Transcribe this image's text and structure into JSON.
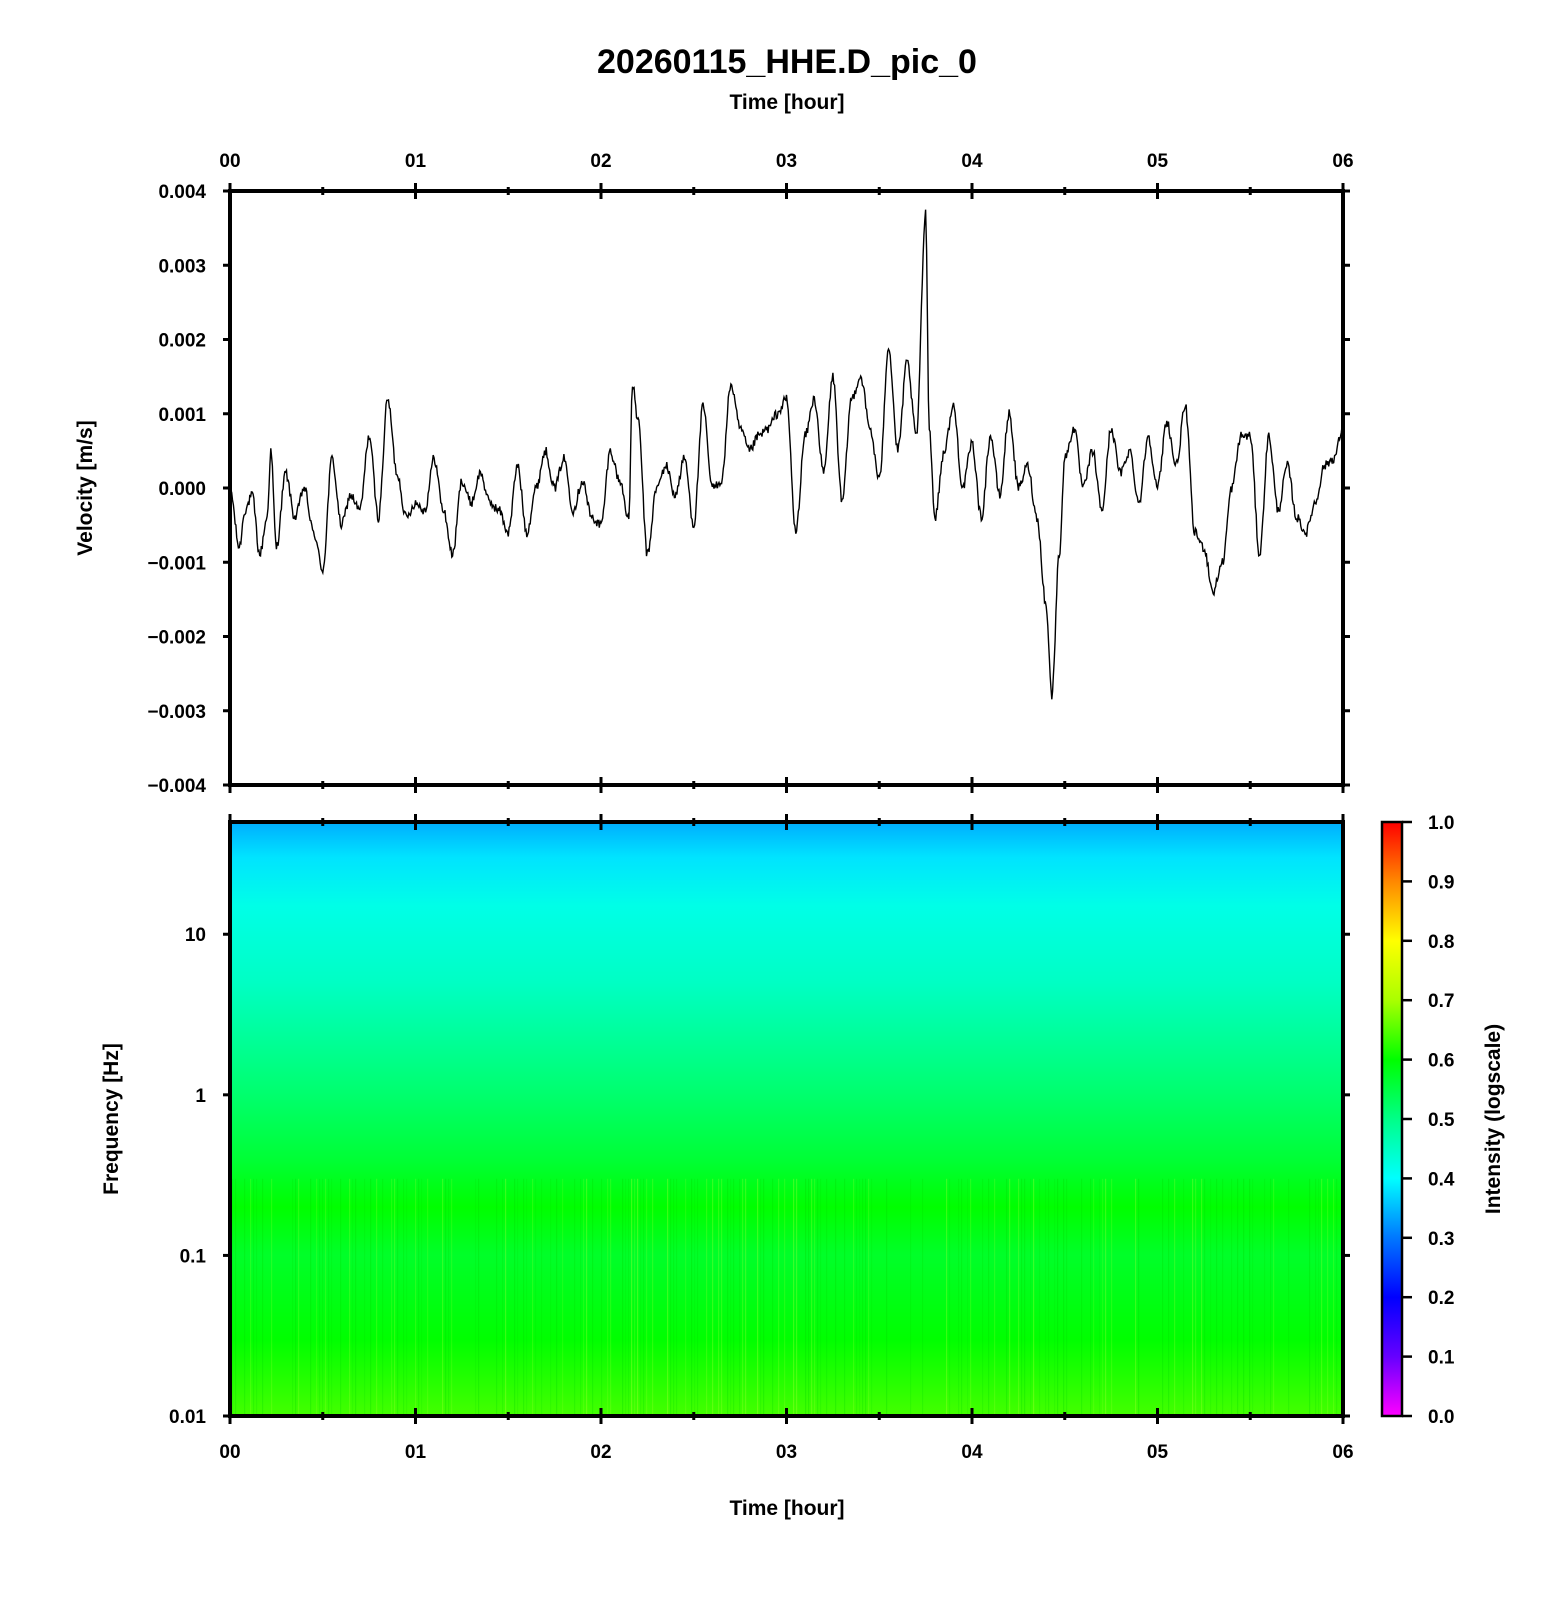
{
  "title": "20260115_HHE.D_pic_0",
  "top_xlabel": "Time [hour]",
  "bottom_xlabel": "Time [hour]",
  "colors": {
    "trace": "#000000",
    "frame": "#000000",
    "background": "#ffffff"
  },
  "chart_data": [
    {
      "type": "line",
      "ylabel": "Velocity [m/s]",
      "xlim": [
        0,
        6
      ],
      "ylim": [
        -0.004,
        0.004
      ],
      "x_tick_labels": [
        "00",
        "01",
        "02",
        "03",
        "04",
        "05",
        "06"
      ],
      "y_tick_labels": [
        "0.004",
        "0.003",
        "0.002",
        "0.001",
        "0.000",
        "−0.001",
        "−0.002",
        "−0.003",
        "−0.004"
      ],
      "y_ticks": [
        0.004,
        0.003,
        0.002,
        0.001,
        0.0,
        -0.001,
        -0.002,
        -0.003,
        -0.004
      ],
      "grid": false,
      "series": [
        {
          "x": [
            0.0,
            0.05,
            0.08,
            0.12,
            0.16,
            0.2,
            0.22,
            0.25,
            0.3,
            0.35,
            0.4,
            0.45,
            0.5,
            0.55,
            0.6,
            0.65,
            0.7,
            0.75,
            0.8,
            0.85,
            0.9,
            0.95,
            1.0,
            1.05,
            1.1,
            1.15,
            1.2,
            1.25,
            1.3,
            1.35,
            1.4,
            1.45,
            1.5,
            1.55,
            1.6,
            1.65,
            1.7,
            1.75,
            1.8,
            1.85,
            1.9,
            1.95,
            2.0,
            2.05,
            2.1,
            2.15,
            2.17,
            2.2,
            2.25,
            2.3,
            2.35,
            2.4,
            2.45,
            2.5,
            2.55,
            2.6,
            2.65,
            2.7,
            2.75,
            2.8,
            2.85,
            2.9,
            2.95,
            3.0,
            3.05,
            3.1,
            3.15,
            3.2,
            3.25,
            3.3,
            3.35,
            3.4,
            3.45,
            3.5,
            3.55,
            3.6,
            3.65,
            3.7,
            3.75,
            3.77,
            3.8,
            3.85,
            3.9,
            3.95,
            4.0,
            4.05,
            4.1,
            4.15,
            4.2,
            4.25,
            4.3,
            4.35,
            4.4,
            4.43,
            4.47,
            4.5,
            4.55,
            4.6,
            4.65,
            4.7,
            4.75,
            4.8,
            4.85,
            4.9,
            4.95,
            5.0,
            5.05,
            5.1,
            5.15,
            5.2,
            5.25,
            5.3,
            5.35,
            5.4,
            5.45,
            5.5,
            5.55,
            5.6,
            5.65,
            5.7,
            5.75,
            5.8,
            5.85,
            5.9,
            5.95,
            6.0
          ],
          "values": [
            0.0,
            -0.0008,
            -0.0003,
            -0.0001,
            -0.0009,
            -0.0004,
            0.0005,
            -0.0008,
            0.0002,
            -0.0004,
            0.0,
            -0.0006,
            -0.0011,
            0.0004,
            -0.0005,
            -0.0001,
            -0.0003,
            0.0007,
            -0.0004,
            0.0012,
            0.0002,
            -0.0004,
            -0.0002,
            -0.0003,
            0.0004,
            -0.0003,
            -0.0009,
            0.0001,
            -0.0002,
            0.0002,
            -0.0002,
            -0.0003,
            -0.0006,
            0.0003,
            -0.0006,
            0.0,
            0.0005,
            0.0,
            0.0004,
            -0.0003,
            0.0001,
            -0.0004,
            -0.0005,
            0.0005,
            0.0001,
            -0.0004,
            0.0014,
            0.0009,
            -0.0009,
            0.0,
            0.0003,
            -0.0001,
            0.0004,
            -0.0005,
            0.0011,
            0.0,
            0.0001,
            0.0014,
            0.0008,
            0.0005,
            0.0007,
            0.0008,
            0.001,
            0.0012,
            -0.0006,
            0.0007,
            0.0012,
            0.0002,
            0.0015,
            -0.0002,
            0.0012,
            0.0015,
            0.0008,
            0.0001,
            0.0019,
            0.0005,
            0.0017,
            0.0007,
            0.0037,
            0.0008,
            -0.0004,
            0.0005,
            0.0011,
            0.0,
            0.0006,
            -0.0004,
            0.0007,
            -0.0001,
            0.001,
            0.0,
            0.0003,
            -0.0004,
            -0.0016,
            -0.0028,
            -0.0009,
            0.0004,
            0.0008,
            0.0,
            0.0005,
            -0.0003,
            0.0008,
            0.0002,
            0.0005,
            -0.0002,
            0.0007,
            0.0,
            0.0009,
            0.0003,
            0.0011,
            -0.0006,
            -0.0008,
            -0.0014,
            -0.001,
            0.0,
            0.0007,
            0.0007,
            -0.0009,
            0.0007,
            -0.0003,
            0.0003,
            -0.0004,
            -0.0006,
            -0.0002,
            0.0003,
            0.0004,
            0.0008
          ]
        }
      ]
    },
    {
      "type": "heatmap",
      "ylabel": "Frequency [Hz]",
      "xlabel": "Time [hour]",
      "xlim": [
        0,
        6
      ],
      "ylim": [
        0.01,
        50
      ],
      "yscale": "log",
      "x_tick_labels": [
        "00",
        "01",
        "02",
        "03",
        "04",
        "05",
        "06"
      ],
      "y_tick_labels": [
        "10",
        "1",
        "0.1",
        "0.01"
      ],
      "y_ticks": [
        10,
        1,
        0.1,
        0.01
      ],
      "colorbar": {
        "label": "Intensity (logscale)",
        "min": 0.0,
        "max": 1.0,
        "tick_labels": [
          "1.0",
          "0.9",
          "0.8",
          "0.7",
          "0.6",
          "0.5",
          "0.4",
          "0.3",
          "0.2",
          "0.1",
          "0.0"
        ],
        "ticks": [
          1.0,
          0.9,
          0.8,
          0.7,
          0.6,
          0.5,
          0.4,
          0.3,
          0.2,
          0.1,
          0.0
        ],
        "colormap": [
          "#ff00ff",
          "#6600ff",
          "#0000ff",
          "#0077ff",
          "#00ffff",
          "#00ff88",
          "#00ff00",
          "#aaff00",
          "#ffff00",
          "#ff8800",
          "#ff0000"
        ]
      },
      "intensity_profile": [
        {
          "freq": 50,
          "intensity": 0.34
        },
        {
          "freq": 30,
          "intensity": 0.38
        },
        {
          "freq": 15,
          "intensity": 0.42
        },
        {
          "freq": 5,
          "intensity": 0.45
        },
        {
          "freq": 1,
          "intensity": 0.52
        },
        {
          "freq": 0.4,
          "intensity": 0.56
        },
        {
          "freq": 0.2,
          "intensity": 0.6
        },
        {
          "freq": 0.1,
          "intensity": 0.57
        },
        {
          "freq": 0.03,
          "intensity": 0.6
        },
        {
          "freq": 0.01,
          "intensity": 0.64
        }
      ]
    }
  ]
}
